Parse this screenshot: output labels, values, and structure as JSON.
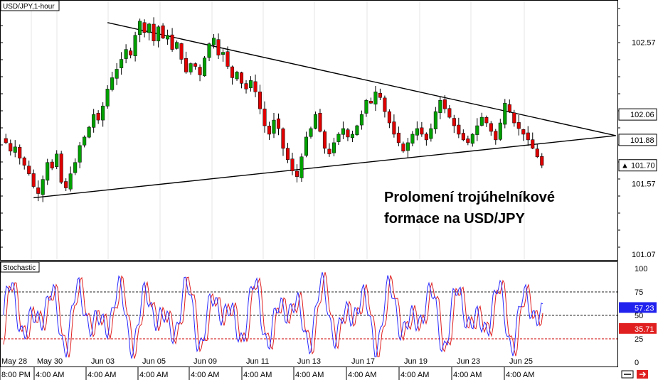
{
  "chart_data": {
    "type": "candlestick",
    "symbol_label": "USD/JPY,1-hour",
    "price_axis": {
      "ticks": [
        "102.57",
        "101.57",
        "101.07"
      ],
      "ylim": [
        101.03,
        102.87
      ]
    },
    "price_tags": [
      {
        "value": 102.06,
        "text": "102.06",
        "style": "plain"
      },
      {
        "value": 101.88,
        "text": "101.88",
        "style": "plain"
      },
      {
        "value": 101.7,
        "text": "▲ 101.70",
        "style": "current"
      }
    ],
    "trendlines": [
      {
        "name": "upper",
        "from": {
          "bar": 22,
          "price": 102.71
        },
        "to": {
          "bar": 132,
          "price": 101.91
        }
      },
      {
        "name": "lower",
        "from": {
          "bar": 6,
          "price": 101.47
        },
        "to": {
          "bar": 132,
          "price": 101.91
        }
      }
    ],
    "date_labels": [
      "May 28",
      "May 30",
      "Jun 03",
      "Jun 05",
      "Jun 09",
      "Jun 11",
      "Jun 13",
      "Jun 17",
      "Jun 19",
      "Jun 23",
      "Jun 25"
    ],
    "time_labels": [
      "8:00 PM",
      "4:00 AM",
      "4:00 AM",
      "4:00 AM",
      "4:00 AM",
      "4:00 AM",
      "4:00 AM",
      "4:00 AM",
      "4:00 AM",
      "4:00 AM",
      "4:00 AM"
    ],
    "candles_close": [
      101.86,
      101.8,
      101.83,
      101.75,
      101.7,
      101.64,
      101.55,
      101.5,
      101.6,
      101.72,
      101.68,
      101.78,
      101.58,
      101.54,
      101.64,
      101.72,
      101.84,
      101.9,
      101.97,
      102.06,
      102.02,
      102.12,
      102.24,
      102.32,
      102.38,
      102.45,
      102.52,
      102.48,
      102.62,
      102.72,
      102.64,
      102.7,
      102.58,
      102.68,
      102.6,
      102.62,
      102.52,
      102.57,
      102.45,
      102.36,
      102.42,
      102.4,
      102.34,
      102.46,
      102.56,
      102.6,
      102.48,
      102.5,
      102.4,
      102.32,
      102.36,
      102.28,
      102.24,
      102.3,
      102.22,
      102.1,
      101.98,
      101.92,
      102.02,
      101.96,
      101.82,
      101.74,
      101.66,
      101.62,
      101.76,
      101.9,
      101.96,
      102.06,
      101.94,
      101.82,
      101.78,
      101.86,
      101.92,
      101.96,
      101.9,
      101.92,
      101.98,
      102.06,
      102.16,
      102.14,
      102.22,
      102.18,
      102.08,
      102.0,
      101.92,
      101.86,
      101.8,
      101.86,
      101.92,
      101.96,
      101.92,
      101.88,
      101.96,
      102.08,
      102.16,
      102.1,
      102.04,
      101.98,
      101.92,
      101.88,
      101.86,
      101.92,
      101.98,
      102.04,
      102.0,
      101.94,
      101.88,
      102.0,
      102.14,
      102.08,
      102.0,
      101.96,
      101.92,
      101.88,
      101.82,
      101.76,
      101.7
    ],
    "stochastic": {
      "name": "Stochastic",
      "ylim": [
        0,
        100
      ],
      "ticks": [
        "100",
        "75",
        "50",
        "25",
        "0"
      ],
      "levels": [
        75,
        50,
        25
      ],
      "k_value_tag": "57.23",
      "d_value_tag": "35.71",
      "k_color": "#2a2aff",
      "d_color": "#e02020"
    }
  },
  "annotation": {
    "line1": "Prolomení trojúhelnníkové",
    "line1_text": "Prolomení trojúhelníkové",
    "line2": "formace na USD/JPY"
  },
  "colors": {
    "bull": "#00a000",
    "bear": "#e00000",
    "wick": "#000000",
    "current_tag": "#000000",
    "k_tag_bg": "#2222ee",
    "d_tag_bg": "#e02020"
  },
  "icons": [
    "scroll-icon",
    "close-arrow-icon"
  ]
}
